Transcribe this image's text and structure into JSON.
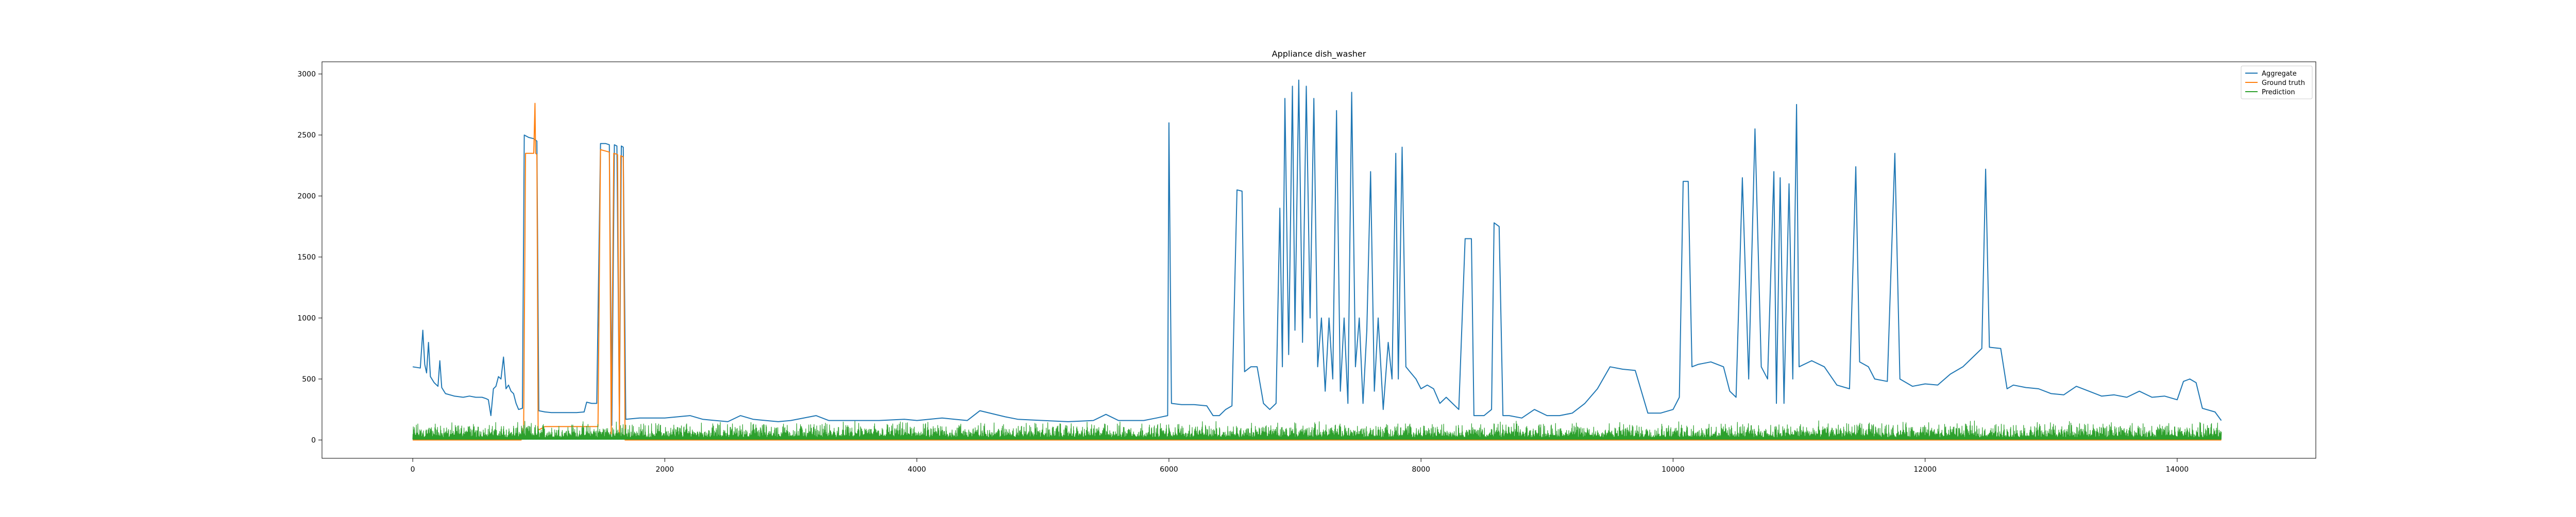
{
  "chart_data": {
    "type": "line",
    "title": "Appliance dish_washer",
    "xlabel": "",
    "ylabel": "",
    "xlim": [
      -720,
      15100
    ],
    "ylim": [
      -150,
      3100
    ],
    "x_ticks": [
      0,
      2000,
      4000,
      6000,
      8000,
      10000,
      12000,
      14000
    ],
    "y_ticks": [
      0,
      500,
      1000,
      1500,
      2000,
      2500,
      3000
    ],
    "grid": false,
    "legend_position": "top-right",
    "series": [
      {
        "name": "Aggregate",
        "color": "#1f77b4",
        "points": [
          [
            0,
            600
          ],
          [
            60,
            590
          ],
          [
            80,
            900
          ],
          [
            95,
            620
          ],
          [
            110,
            550
          ],
          [
            125,
            800
          ],
          [
            140,
            520
          ],
          [
            170,
            470
          ],
          [
            200,
            440
          ],
          [
            215,
            650
          ],
          [
            230,
            430
          ],
          [
            260,
            380
          ],
          [
            330,
            360
          ],
          [
            400,
            350
          ],
          [
            450,
            360
          ],
          [
            500,
            350
          ],
          [
            550,
            350
          ],
          [
            580,
            340
          ],
          [
            600,
            330
          ],
          [
            620,
            200
          ],
          [
            640,
            420
          ],
          [
            660,
            440
          ],
          [
            680,
            520
          ],
          [
            700,
            500
          ],
          [
            720,
            680
          ],
          [
            740,
            420
          ],
          [
            760,
            450
          ],
          [
            780,
            400
          ],
          [
            800,
            380
          ],
          [
            820,
            300
          ],
          [
            840,
            250
          ],
          [
            870,
            260
          ],
          [
            885,
            2500
          ],
          [
            920,
            2480
          ],
          [
            960,
            2470
          ],
          [
            985,
            2450
          ],
          [
            1000,
            240
          ],
          [
            1050,
            230
          ],
          [
            1100,
            225
          ],
          [
            1200,
            225
          ],
          [
            1300,
            225
          ],
          [
            1360,
            230
          ],
          [
            1380,
            310
          ],
          [
            1420,
            300
          ],
          [
            1460,
            300
          ],
          [
            1490,
            2430
          ],
          [
            1530,
            2430
          ],
          [
            1560,
            2420
          ],
          [
            1580,
            120
          ],
          [
            1600,
            2420
          ],
          [
            1620,
            2410
          ],
          [
            1640,
            130
          ],
          [
            1655,
            2410
          ],
          [
            1670,
            2400
          ],
          [
            1690,
            170
          ],
          [
            1800,
            180
          ],
          [
            2000,
            180
          ],
          [
            2200,
            200
          ],
          [
            2300,
            170
          ],
          [
            2400,
            160
          ],
          [
            2500,
            150
          ],
          [
            2600,
            200
          ],
          [
            2700,
            170
          ],
          [
            2800,
            160
          ],
          [
            2900,
            150
          ],
          [
            3000,
            160
          ],
          [
            3200,
            200
          ],
          [
            3300,
            160
          ],
          [
            3500,
            160
          ],
          [
            3700,
            160
          ],
          [
            3900,
            170
          ],
          [
            4000,
            160
          ],
          [
            4200,
            180
          ],
          [
            4300,
            170
          ],
          [
            4400,
            160
          ],
          [
            4500,
            240
          ],
          [
            4700,
            190
          ],
          [
            4800,
            170
          ],
          [
            5000,
            160
          ],
          [
            5200,
            150
          ],
          [
            5400,
            160
          ],
          [
            5500,
            210
          ],
          [
            5600,
            160
          ],
          [
            5800,
            160
          ],
          [
            5900,
            180
          ],
          [
            5990,
            200
          ],
          [
            6000,
            2600
          ],
          [
            6020,
            300
          ],
          [
            6100,
            290
          ],
          [
            6200,
            290
          ],
          [
            6300,
            280
          ],
          [
            6350,
            200
          ],
          [
            6400,
            200
          ],
          [
            6450,
            250
          ],
          [
            6500,
            280
          ],
          [
            6540,
            2050
          ],
          [
            6580,
            2040
          ],
          [
            6600,
            560
          ],
          [
            6650,
            600
          ],
          [
            6700,
            600
          ],
          [
            6750,
            300
          ],
          [
            6800,
            250
          ],
          [
            6850,
            300
          ],
          [
            6880,
            1900
          ],
          [
            6900,
            600
          ],
          [
            6920,
            2800
          ],
          [
            6950,
            700
          ],
          [
            6980,
            2900
          ],
          [
            7000,
            900
          ],
          [
            7030,
            2950
          ],
          [
            7060,
            800
          ],
          [
            7090,
            2900
          ],
          [
            7120,
            1000
          ],
          [
            7150,
            2800
          ],
          [
            7180,
            600
          ],
          [
            7210,
            1000
          ],
          [
            7240,
            400
          ],
          [
            7270,
            1000
          ],
          [
            7300,
            500
          ],
          [
            7330,
            2700
          ],
          [
            7360,
            400
          ],
          [
            7390,
            1000
          ],
          [
            7420,
            300
          ],
          [
            7450,
            2850
          ],
          [
            7480,
            600
          ],
          [
            7510,
            1000
          ],
          [
            7540,
            300
          ],
          [
            7570,
            900
          ],
          [
            7600,
            2200
          ],
          [
            7630,
            400
          ],
          [
            7660,
            1000
          ],
          [
            7700,
            250
          ],
          [
            7740,
            800
          ],
          [
            7770,
            500
          ],
          [
            7800,
            2350
          ],
          [
            7820,
            500
          ],
          [
            7850,
            2400
          ],
          [
            7880,
            600
          ],
          [
            7920,
            550
          ],
          [
            7960,
            500
          ],
          [
            8000,
            420
          ],
          [
            8050,
            450
          ],
          [
            8100,
            420
          ],
          [
            8150,
            300
          ],
          [
            8200,
            350
          ],
          [
            8250,
            300
          ],
          [
            8300,
            250
          ],
          [
            8350,
            1650
          ],
          [
            8400,
            1650
          ],
          [
            8420,
            200
          ],
          [
            8500,
            200
          ],
          [
            8560,
            250
          ],
          [
            8580,
            1780
          ],
          [
            8620,
            1750
          ],
          [
            8650,
            200
          ],
          [
            8700,
            200
          ],
          [
            8800,
            180
          ],
          [
            8900,
            250
          ],
          [
            9000,
            200
          ],
          [
            9100,
            200
          ],
          [
            9200,
            220
          ],
          [
            9300,
            300
          ],
          [
            9400,
            420
          ],
          [
            9500,
            600
          ],
          [
            9600,
            580
          ],
          [
            9700,
            570
          ],
          [
            9800,
            220
          ],
          [
            9900,
            220
          ],
          [
            10000,
            250
          ],
          [
            10050,
            350
          ],
          [
            10080,
            2120
          ],
          [
            10120,
            2120
          ],
          [
            10150,
            600
          ],
          [
            10200,
            620
          ],
          [
            10300,
            640
          ],
          [
            10400,
            600
          ],
          [
            10450,
            400
          ],
          [
            10500,
            350
          ],
          [
            10550,
            2150
          ],
          [
            10600,
            500
          ],
          [
            10650,
            2550
          ],
          [
            10700,
            600
          ],
          [
            10750,
            500
          ],
          [
            10800,
            2200
          ],
          [
            10820,
            300
          ],
          [
            10850,
            2150
          ],
          [
            10880,
            300
          ],
          [
            10920,
            2100
          ],
          [
            10950,
            500
          ],
          [
            10980,
            2750
          ],
          [
            11000,
            600
          ],
          [
            11100,
            650
          ],
          [
            11200,
            600
          ],
          [
            11300,
            450
          ],
          [
            11400,
            420
          ],
          [
            11450,
            2240
          ],
          [
            11480,
            640
          ],
          [
            11550,
            600
          ],
          [
            11600,
            500
          ],
          [
            11700,
            480
          ],
          [
            11760,
            2350
          ],
          [
            11800,
            500
          ],
          [
            11900,
            440
          ],
          [
            12000,
            460
          ],
          [
            12100,
            450
          ],
          [
            12200,
            540
          ],
          [
            12300,
            600
          ],
          [
            12400,
            700
          ],
          [
            12450,
            750
          ],
          [
            12480,
            2220
          ],
          [
            12510,
            760
          ],
          [
            12600,
            750
          ],
          [
            12650,
            420
          ],
          [
            12700,
            450
          ],
          [
            12800,
            430
          ],
          [
            12900,
            420
          ],
          [
            13000,
            380
          ],
          [
            13100,
            370
          ],
          [
            13200,
            440
          ],
          [
            13300,
            400
          ],
          [
            13400,
            360
          ],
          [
            13500,
            370
          ],
          [
            13600,
            350
          ],
          [
            13700,
            400
          ],
          [
            13800,
            350
          ],
          [
            13900,
            360
          ],
          [
            14000,
            330
          ],
          [
            14050,
            480
          ],
          [
            14100,
            500
          ],
          [
            14150,
            470
          ],
          [
            14200,
            260
          ],
          [
            14300,
            230
          ],
          [
            14350,
            160
          ]
        ]
      },
      {
        "name": "Ground truth",
        "color": "#ff7f0e",
        "points": [
          [
            0,
            0
          ],
          [
            860,
            0
          ],
          [
            880,
            100
          ],
          [
            895,
            2350
          ],
          [
            960,
            2350
          ],
          [
            970,
            2760
          ],
          [
            975,
            2350
          ],
          [
            985,
            2340
          ],
          [
            995,
            80
          ],
          [
            1050,
            110
          ],
          [
            1300,
            110
          ],
          [
            1470,
            110
          ],
          [
            1490,
            2380
          ],
          [
            1560,
            2360
          ],
          [
            1575,
            50
          ],
          [
            1595,
            2350
          ],
          [
            1625,
            2340
          ],
          [
            1640,
            50
          ],
          [
            1650,
            2330
          ],
          [
            1670,
            2320
          ],
          [
            1685,
            0
          ],
          [
            14350,
            0
          ]
        ]
      },
      {
        "name": "Prediction",
        "color": "#2ca02c",
        "noise": true,
        "base": 5,
        "amplitude": [
          0,
          140
        ],
        "x_range": [
          0,
          14350
        ]
      }
    ]
  }
}
